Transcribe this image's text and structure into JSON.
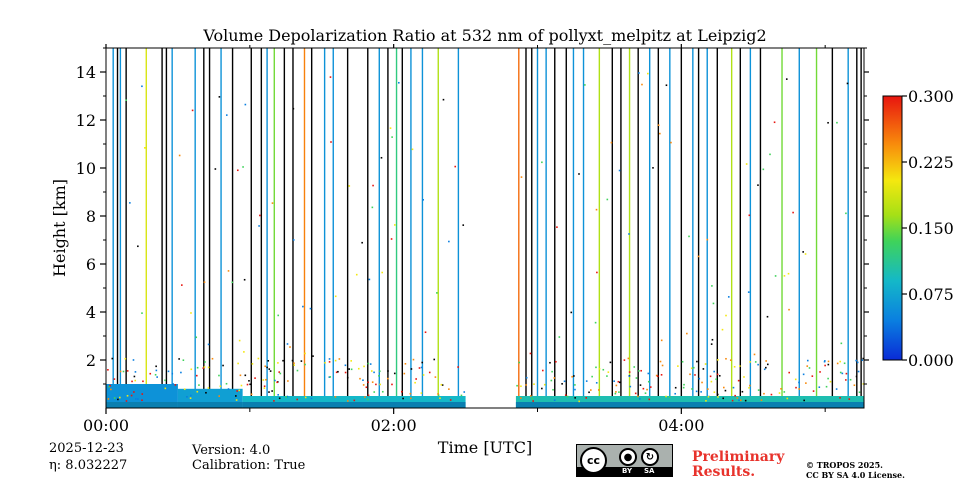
{
  "chart_data": {
    "type": "heatmap",
    "title": "Volume Depolarization Ratio at 532 nm of pollyxt_melpitz at Leipzig2",
    "xlabel": "Time [UTC]",
    "ylabel": "Height [km]",
    "x_unit": "hours UTC",
    "xlim": [
      0.0,
      5.27
    ],
    "ylim": [
      0.0,
      15.0
    ],
    "x_ticks": [
      0,
      2,
      4
    ],
    "x_tick_labels": [
      "00:00",
      "02:00",
      "04:00"
    ],
    "y_ticks": [
      2,
      4,
      6,
      8,
      10,
      12,
      14
    ],
    "y_tick_labels": [
      "2",
      "4",
      "6",
      "8",
      "10",
      "12",
      "14"
    ],
    "colorbar": {
      "min": 0.0,
      "max": 0.3,
      "ticks": [
        0.0,
        0.075,
        0.15,
        0.225,
        0.3
      ],
      "tick_labels": [
        "0.000",
        "0.075",
        "0.150",
        "0.225",
        "0.300"
      ],
      "colormap": "jet"
    },
    "data_gap": [
      2.5,
      2.85
    ],
    "near_surface_layer": [
      {
        "t_start": 0.0,
        "t_end": 0.5,
        "top_km": 1.0,
        "value": 0.06
      },
      {
        "t_start": 0.5,
        "t_end": 0.95,
        "top_km": 0.8,
        "value": 0.07
      },
      {
        "t_start": 0.95,
        "t_end": 2.5,
        "top_km": 0.5,
        "value": 0.09
      },
      {
        "t_start": 2.85,
        "t_end": 5.27,
        "top_km": 0.5,
        "value": 0.1
      }
    ],
    "vertical_streaks": [
      {
        "t": 0.05,
        "value": 0.06
      },
      {
        "t": 0.08,
        "value": 0.0
      },
      {
        "t": 0.1,
        "value": 0.06
      },
      {
        "t": 0.14,
        "value": 0.0
      },
      {
        "t": 0.28,
        "value": 0.19
      },
      {
        "t": 0.39,
        "value": 0.0
      },
      {
        "t": 0.42,
        "value": 0.0
      },
      {
        "t": 0.46,
        "value": 0.06
      },
      {
        "t": 0.62,
        "value": 0.06
      },
      {
        "t": 0.68,
        "value": 0.0
      },
      {
        "t": 0.72,
        "value": 0.0
      },
      {
        "t": 0.8,
        "value": 0.06
      },
      {
        "t": 0.88,
        "value": 0.0
      },
      {
        "t": 1.01,
        "value": 0.0
      },
      {
        "t": 1.08,
        "value": 0.0
      },
      {
        "t": 1.12,
        "value": 0.06
      },
      {
        "t": 1.17,
        "value": 0.15
      },
      {
        "t": 1.24,
        "value": 0.0
      },
      {
        "t": 1.3,
        "value": 0.0
      },
      {
        "t": 1.38,
        "value": 0.25
      },
      {
        "t": 1.43,
        "value": 0.0
      },
      {
        "t": 1.52,
        "value": 0.06
      },
      {
        "t": 1.58,
        "value": 0.06
      },
      {
        "t": 1.68,
        "value": 0.0
      },
      {
        "t": 1.82,
        "value": 0.0
      },
      {
        "t": 1.9,
        "value": 0.06
      },
      {
        "t": 1.96,
        "value": 0.0
      },
      {
        "t": 2.02,
        "value": 0.12
      },
      {
        "t": 2.06,
        "value": 0.0
      },
      {
        "t": 2.12,
        "value": 0.06
      },
      {
        "t": 2.2,
        "value": 0.06
      },
      {
        "t": 2.31,
        "value": 0.17
      },
      {
        "t": 2.45,
        "value": 0.06
      },
      {
        "t": 2.87,
        "value": 0.26
      },
      {
        "t": 2.92,
        "value": 0.0
      },
      {
        "t": 2.96,
        "value": 0.0
      },
      {
        "t": 3.0,
        "value": 0.06
      },
      {
        "t": 3.06,
        "value": 0.06
      },
      {
        "t": 3.12,
        "value": 0.0
      },
      {
        "t": 3.2,
        "value": 0.0
      },
      {
        "t": 3.25,
        "value": 0.06
      },
      {
        "t": 3.32,
        "value": 0.06
      },
      {
        "t": 3.43,
        "value": 0.17
      },
      {
        "t": 3.52,
        "value": 0.0
      },
      {
        "t": 3.58,
        "value": 0.0
      },
      {
        "t": 3.64,
        "value": 0.17
      },
      {
        "t": 3.7,
        "value": 0.0
      },
      {
        "t": 3.78,
        "value": 0.06
      },
      {
        "t": 3.84,
        "value": 0.0
      },
      {
        "t": 3.92,
        "value": 0.06
      },
      {
        "t": 4.0,
        "value": 0.0
      },
      {
        "t": 4.08,
        "value": 0.06
      },
      {
        "t": 4.12,
        "value": 0.0
      },
      {
        "t": 4.18,
        "value": 0.06
      },
      {
        "t": 4.25,
        "value": 0.0
      },
      {
        "t": 4.35,
        "value": 0.17
      },
      {
        "t": 4.41,
        "value": 0.0
      },
      {
        "t": 4.48,
        "value": 0.06
      },
      {
        "t": 4.55,
        "value": 0.0
      },
      {
        "t": 4.7,
        "value": 0.15
      },
      {
        "t": 4.82,
        "value": 0.06
      },
      {
        "t": 4.94,
        "value": 0.15
      },
      {
        "t": 5.05,
        "value": 0.0
      },
      {
        "t": 5.16,
        "value": 0.06
      },
      {
        "t": 5.22,
        "value": 0.0
      },
      {
        "t": 5.25,
        "value": 0.0
      }
    ]
  },
  "info": {
    "date": "2025-12-23",
    "eta": "η: 8.032227",
    "version": "Version: 4.0",
    "calibration": "Calibration: True"
  },
  "license": {
    "badge_cc": "cc",
    "badge_by": "BY",
    "badge_sa": "SA",
    "preliminary_line1": "Preliminary",
    "preliminary_line2": "Results.",
    "copyright_line1": "© TROPOS 2025.",
    "copyright_line2": "CC BY SA 4.0 License."
  }
}
